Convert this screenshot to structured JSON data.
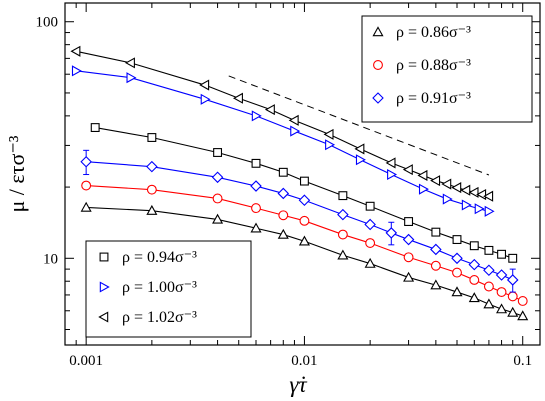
{
  "chart_data": {
    "type": "scatter",
    "title": "",
    "xlabel": "γ̇τ",
    "ylabel": "μ / ετσ⁻³",
    "xscale": "log",
    "yscale": "log",
    "xlim": [
      0.0008,
      0.12
    ],
    "ylim": [
      4.3,
      120
    ],
    "x_ticks": [
      0.001,
      0.01,
      0.1
    ],
    "x_tick_labels": [
      "0.001",
      "0.01",
      "0.1"
    ],
    "y_ticks": [
      10,
      100
    ],
    "y_tick_labels": [
      "10",
      "100"
    ],
    "grid": false,
    "legends": [
      {
        "placement": "top-right",
        "entries": [
          0,
          1,
          2
        ]
      },
      {
        "placement": "bottom-left",
        "entries": [
          3,
          4,
          5
        ]
      }
    ],
    "reference_line": {
      "style": "dashed",
      "x": [
        0.0045,
        0.07
      ],
      "y": [
        59,
        22.5
      ]
    },
    "series": [
      {
        "name": "ρ = 0.86σ⁻³",
        "rho": "0.86",
        "marker": "triangle-up",
        "color": "#000000",
        "x": [
          0.001,
          0.002,
          0.004,
          0.006,
          0.008,
          0.01,
          0.015,
          0.02,
          0.03,
          0.04,
          0.05,
          0.06,
          0.07,
          0.08,
          0.09,
          0.1
        ],
        "y": [
          16.4,
          15.9,
          14.6,
          13.4,
          12.6,
          11.8,
          10.3,
          9.5,
          8.3,
          7.7,
          7.2,
          6.8,
          6.4,
          6.1,
          5.9,
          5.7
        ]
      },
      {
        "name": "ρ = 0.88σ⁻³",
        "rho": "0.88",
        "marker": "circle",
        "color": "#ff0000",
        "x": [
          0.001,
          0.002,
          0.004,
          0.006,
          0.008,
          0.01,
          0.015,
          0.02,
          0.03,
          0.04,
          0.05,
          0.06,
          0.07,
          0.08,
          0.09,
          0.1
        ],
        "y": [
          20.3,
          19.5,
          17.9,
          16.3,
          15.2,
          14.4,
          12.6,
          11.6,
          10.1,
          9.3,
          8.7,
          8.1,
          7.6,
          7.2,
          6.9,
          6.6
        ]
      },
      {
        "name": "ρ = 0.91σ⁻³",
        "rho": "0.91",
        "marker": "diamond",
        "color": "#0000ff",
        "x": [
          0.001,
          0.002,
          0.004,
          0.006,
          0.008,
          0.01,
          0.015,
          0.02,
          0.025,
          0.03,
          0.04,
          0.05,
          0.06,
          0.07,
          0.08,
          0.09
        ],
        "y": [
          25.6,
          24.4,
          22.0,
          20.2,
          18.8,
          17.6,
          15.3,
          13.9,
          12.8,
          12.0,
          10.9,
          10.0,
          9.4,
          8.9,
          8.5,
          8.1
        ],
        "error_bars": [
          {
            "x": 0.001,
            "dy": 3.0
          },
          {
            "x": 0.025,
            "dy": 1.4
          },
          {
            "x": 0.09,
            "dy": 0.9
          }
        ]
      },
      {
        "name": "ρ = 0.94σ⁻³",
        "rho": "0.94",
        "marker": "square",
        "color": "#000000",
        "x": [
          0.0011,
          0.002,
          0.004,
          0.006,
          0.008,
          0.01,
          0.015,
          0.02,
          0.03,
          0.04,
          0.05,
          0.06,
          0.07,
          0.08,
          0.09
        ],
        "y": [
          35.7,
          32.4,
          28.0,
          25.2,
          23.1,
          21.2,
          18.4,
          16.6,
          14.3,
          12.9,
          12.0,
          11.3,
          10.8,
          10.4,
          10.0
        ]
      },
      {
        "name": "ρ = 1.00σ⁻³",
        "rho": "1.00",
        "marker": "triangle-right",
        "color": "#0000ff",
        "x": [
          0.0009,
          0.0016,
          0.0035,
          0.006,
          0.009,
          0.013,
          0.018,
          0.025,
          0.035,
          0.045,
          0.055,
          0.063,
          0.07
        ],
        "y": [
          62.0,
          58.0,
          47.0,
          40.0,
          34.5,
          30.2,
          26.1,
          22.6,
          19.6,
          17.8,
          16.8,
          16.2,
          15.8
        ]
      },
      {
        "name": "ρ = 1.02σ⁻³",
        "rho": "1.02",
        "marker": "triangle-left",
        "color": "#000000",
        "x": [
          0.0009,
          0.0016,
          0.0035,
          0.005,
          0.007,
          0.009,
          0.013,
          0.018,
          0.025,
          0.03,
          0.035,
          0.04,
          0.045,
          0.05,
          0.055,
          0.06,
          0.065,
          0.07
        ],
        "y": [
          75.0,
          67.0,
          54.0,
          47.5,
          42.5,
          38.3,
          33.4,
          29.0,
          25.3,
          23.7,
          22.4,
          21.3,
          20.6,
          19.9,
          19.4,
          19.0,
          18.6,
          18.3
        ]
      }
    ]
  }
}
